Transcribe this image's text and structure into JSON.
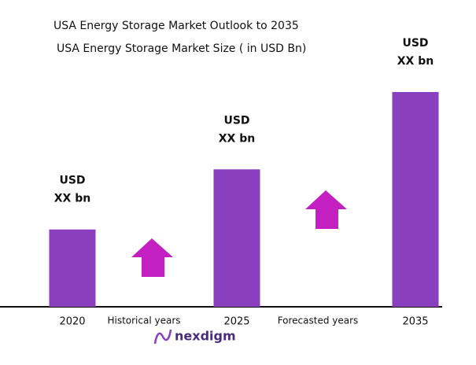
{
  "chart_data": {
    "type": "bar",
    "title": "USA Energy Storage Market Outlook to 2035",
    "subtitle": "USA Energy Storage Market Size ( in USD Bn)",
    "categories": [
      "2020",
      "2025",
      "2035"
    ],
    "values": [
      3.6,
      6.4,
      10
    ],
    "value_labels": [
      [
        "USD",
        "XX bn"
      ],
      [
        "USD",
        "XX bn"
      ],
      [
        "USD",
        "XX bn"
      ]
    ],
    "color": "#8a3fbf",
    "ylim": [
      0,
      10
    ],
    "annotations": [
      "Historical years",
      "Forecasted years"
    ],
    "arrow_color": "#c41fc0",
    "logo": "nexdigm"
  }
}
